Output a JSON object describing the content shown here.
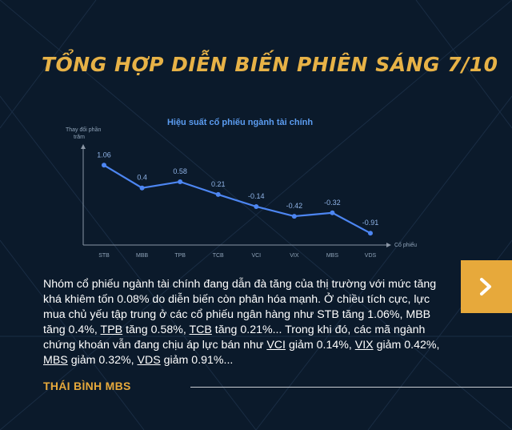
{
  "title": "TỔNG HỢP DIỄN BIẾN PHIÊN SÁNG 7/10",
  "colors": {
    "title": "#e7b247",
    "accent": "#e7a93b",
    "line": "#4d86f2",
    "background": "#0b1a2b"
  },
  "chart_data": {
    "type": "line",
    "title": "Hiệu suất cổ phiếu ngành tài chính",
    "ylabel": "Thay đổi phần trăm",
    "xlabel": "Cổ phiếu",
    "categories": [
      "STB",
      "MBB",
      "TPB",
      "TCB",
      "VCI",
      "VIX",
      "MBS",
      "VDS"
    ],
    "values": [
      1.06,
      0.4,
      0.58,
      0.21,
      -0.14,
      -0.42,
      -0.32,
      -0.91
    ],
    "value_labels": [
      "1.06",
      "0.4",
      "0.58",
      "0.21",
      "-0.14",
      "-0.42",
      "-0.32",
      "-0.91"
    ],
    "ylim": [
      -1.3,
      1.6
    ],
    "grid": false,
    "legend": "none"
  },
  "next_button": {
    "icon": "chevron-right-icon"
  },
  "body": {
    "p1": "Nhóm cổ phiếu ngành tài chính đang dẫn đà tăng của thị trường với mức tăng khá khiêm tốn 0.08% do diễn biến còn phân hóa mạnh. Ở chiều tích cực, lực mua chủ yếu tập trung ở các cổ phiếu ngân hàng như STB tăng 1.06%, MBB tăng 0.4%, ",
    "tpb": "TPB",
    "p2": " tăng 0.58%, ",
    "tcb": "TCB",
    "p3": " tăng 0.21%... Trong khi đó, các mã ngành chứng khoán vẫn đang chịu áp lực bán như ",
    "vci": "VCI",
    "p4": " giảm 0.14%, ",
    "vix": "VIX",
    "p5": " giảm 0.42%, ",
    "mbs": "MBS",
    "p6": " giảm 0.32%, ",
    "vds": "VDS",
    "p7": " giảm 0.91%..."
  },
  "author": "THÁI BÌNH MBS"
}
